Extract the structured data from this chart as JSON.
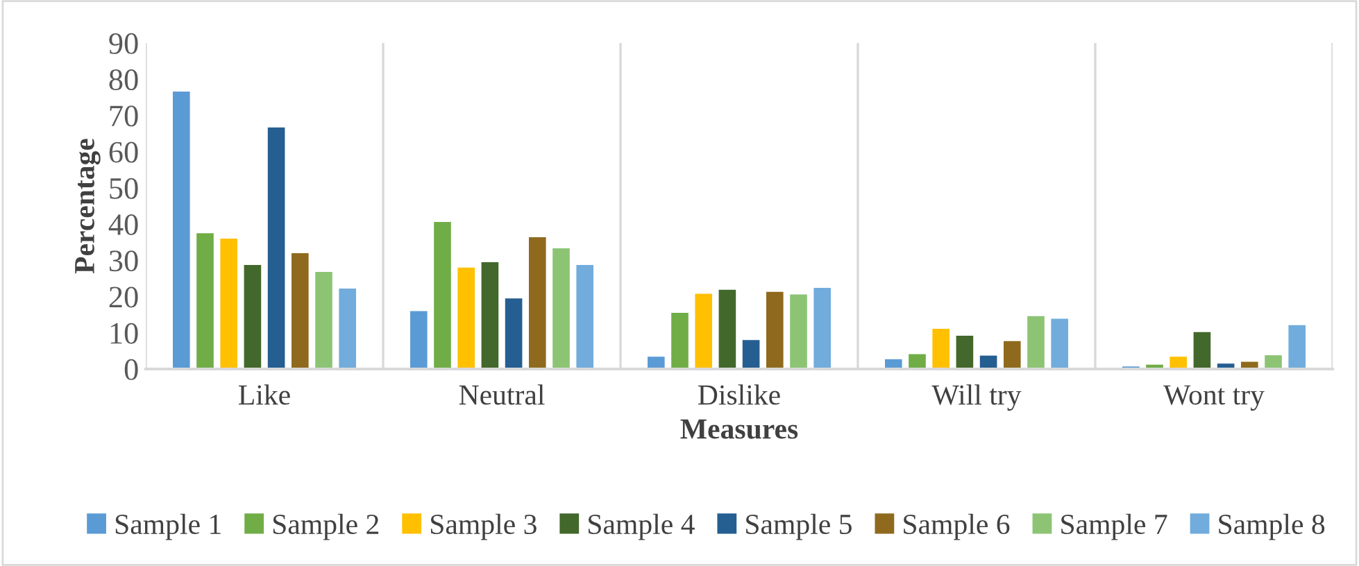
{
  "chart_data": {
    "type": "bar",
    "xlabel": "Measures",
    "ylabel": "Percentage",
    "categories": [
      "Like",
      "Neutral",
      "Dislike",
      "Will try",
      "Wont try"
    ],
    "ylim": [
      0,
      90
    ],
    "yticks": [
      0,
      10,
      20,
      30,
      40,
      50,
      60,
      70,
      80,
      90
    ],
    "grid": "x",
    "legend": "bottom",
    "series": [
      {
        "name": "Sample 1",
        "color": "#5b9bd5",
        "values": [
          76.6,
          16,
          3.4,
          2.7,
          0.7
        ]
      },
      {
        "name": "Sample 2",
        "color": "#70ad47",
        "values": [
          37.5,
          40.6,
          15.5,
          4.1,
          1.2
        ]
      },
      {
        "name": "Sample 3",
        "color": "#ffc000",
        "values": [
          36,
          28,
          20.8,
          11.1,
          3.4
        ]
      },
      {
        "name": "Sample 4",
        "color": "#43682b",
        "values": [
          28.7,
          29.5,
          21.9,
          9.2,
          10.2
        ]
      },
      {
        "name": "Sample 5",
        "color": "#255e91",
        "values": [
          66.7,
          19.5,
          8,
          3.7,
          1.5
        ]
      },
      {
        "name": "Sample 6",
        "color": "#8f6a1e",
        "values": [
          32,
          36.4,
          21.3,
          7.7,
          2
        ]
      },
      {
        "name": "Sample 7",
        "color": "#8cc474",
        "values": [
          26.8,
          33.3,
          20.6,
          14.6,
          3.8
        ]
      },
      {
        "name": "Sample 8",
        "color": "#71acdc",
        "values": [
          22.2,
          28.7,
          22.4,
          13.9,
          12.1
        ]
      }
    ]
  }
}
